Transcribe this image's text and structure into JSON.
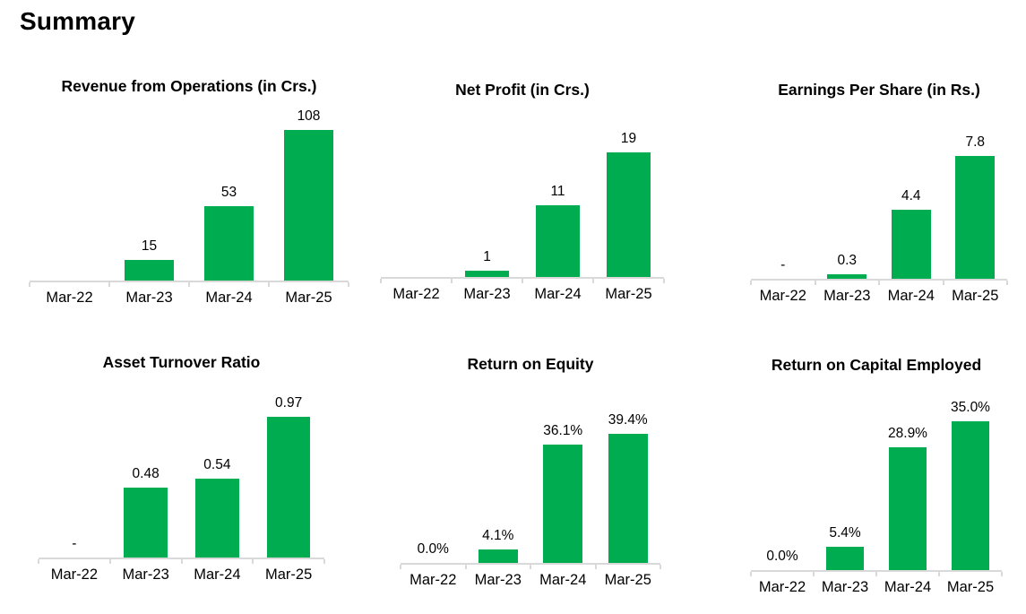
{
  "page": {
    "title": "Summary"
  },
  "colors": {
    "bar": "#00AC50",
    "axis": "#D9D9D9",
    "text": "#000000"
  },
  "chart_data": [
    {
      "type": "bar",
      "title": "Revenue from Operations (in Crs.)",
      "categories": [
        "Mar-22",
        "Mar-23",
        "Mar-24",
        "Mar-25"
      ],
      "values": [
        0,
        15,
        53,
        108
      ],
      "labels": [
        "",
        "15",
        "53",
        "108"
      ],
      "xlabel": "",
      "ylabel": "",
      "ylim": [
        0,
        112
      ],
      "grid": false,
      "legend": false,
      "bar_color": "#00AC50"
    },
    {
      "type": "bar",
      "title": "Net Profit (in Crs.)",
      "categories": [
        "Mar-22",
        "Mar-23",
        "Mar-24",
        "Mar-25"
      ],
      "values": [
        0,
        1,
        11,
        19
      ],
      "labels": [
        "",
        "1",
        "11",
        "19"
      ],
      "xlabel": "",
      "ylabel": "",
      "ylim": [
        0,
        24
      ],
      "grid": false,
      "legend": false,
      "bar_color": "#00AC50"
    },
    {
      "type": "bar",
      "title": "Earnings Per Share (in Rs.)",
      "categories": [
        "Mar-22",
        "Mar-23",
        "Mar-24",
        "Mar-25"
      ],
      "values": [
        0,
        0.3,
        4.4,
        7.8
      ],
      "labels": [
        "-",
        "0.3",
        "4.4",
        "7.8"
      ],
      "xlabel": "",
      "ylabel": "",
      "ylim": [
        0,
        10
      ],
      "grid": false,
      "legend": false,
      "bar_color": "#00AC50"
    },
    {
      "type": "bar",
      "title": "Asset Turnover Ratio",
      "categories": [
        "Mar-22",
        "Mar-23",
        "Mar-24",
        "Mar-25"
      ],
      "values": [
        0,
        0.48,
        0.54,
        0.97
      ],
      "labels": [
        "-",
        "0.48",
        "0.54",
        "0.97"
      ],
      "xlabel": "",
      "ylabel": "",
      "ylim": [
        0,
        1.08
      ],
      "grid": false,
      "legend": false,
      "bar_color": "#00AC50"
    },
    {
      "type": "bar",
      "title": "Return on Equity",
      "categories": [
        "Mar-22",
        "Mar-23",
        "Mar-24",
        "Mar-25"
      ],
      "values": [
        0,
        4.1,
        36.1,
        39.4
      ],
      "labels": [
        "0.0%",
        "4.1%",
        "36.1%",
        "39.4%"
      ],
      "xlabel": "",
      "ylabel": "",
      "ylim": [
        0,
        48
      ],
      "grid": false,
      "legend": false,
      "bar_color": "#00AC50"
    },
    {
      "type": "bar",
      "title": "Return on Capital Employed",
      "categories": [
        "Mar-22",
        "Mar-23",
        "Mar-24",
        "Mar-25"
      ],
      "values": [
        0,
        5.4,
        28.9,
        35.0
      ],
      "labels": [
        "0.0%",
        "5.4%",
        "28.9%",
        "35.0%"
      ],
      "xlabel": "",
      "ylabel": "",
      "ylim": [
        0,
        37
      ],
      "grid": false,
      "legend": false,
      "bar_color": "#00AC50"
    }
  ]
}
